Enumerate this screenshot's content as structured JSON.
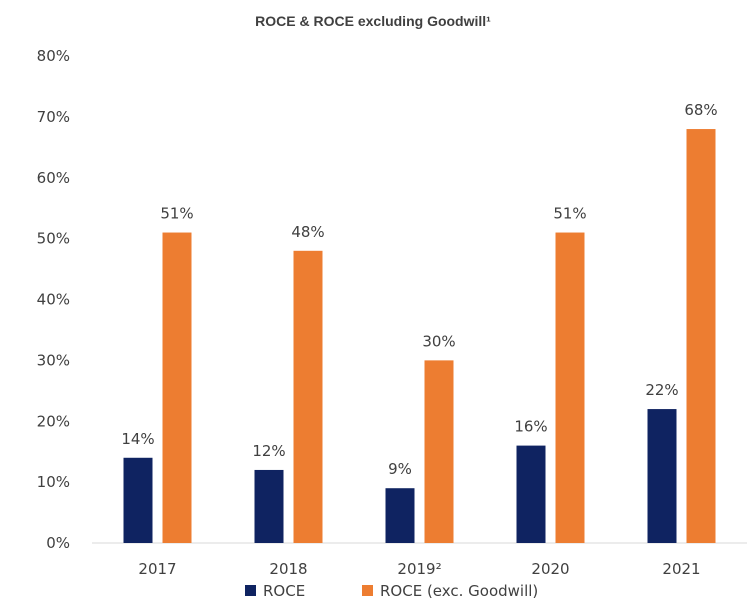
{
  "chart_data": {
    "type": "bar",
    "title": "ROCE & ROCE excluding Goodwill¹",
    "categories": [
      "2017",
      "2018",
      "2019²",
      "2020",
      "2021"
    ],
    "series": [
      {
        "name": "ROCE",
        "color": "#0f2361",
        "values": [
          14,
          12,
          9,
          16,
          22
        ],
        "labels": [
          "14%",
          "12%",
          "9%",
          "16%",
          "22%"
        ]
      },
      {
        "name": "ROCE (exc. Goodwill)",
        "color": "#ed7d31",
        "values": [
          51,
          48,
          30,
          51,
          68
        ],
        "labels": [
          "51%",
          "48%",
          "30%",
          "51%",
          "68%"
        ]
      }
    ],
    "ylim": [
      0,
      80
    ],
    "yticks": [
      "0%",
      "10%",
      "20%",
      "30%",
      "40%",
      "50%",
      "60%",
      "70%",
      "80%"
    ],
    "grid": false,
    "legend": "bottom"
  }
}
